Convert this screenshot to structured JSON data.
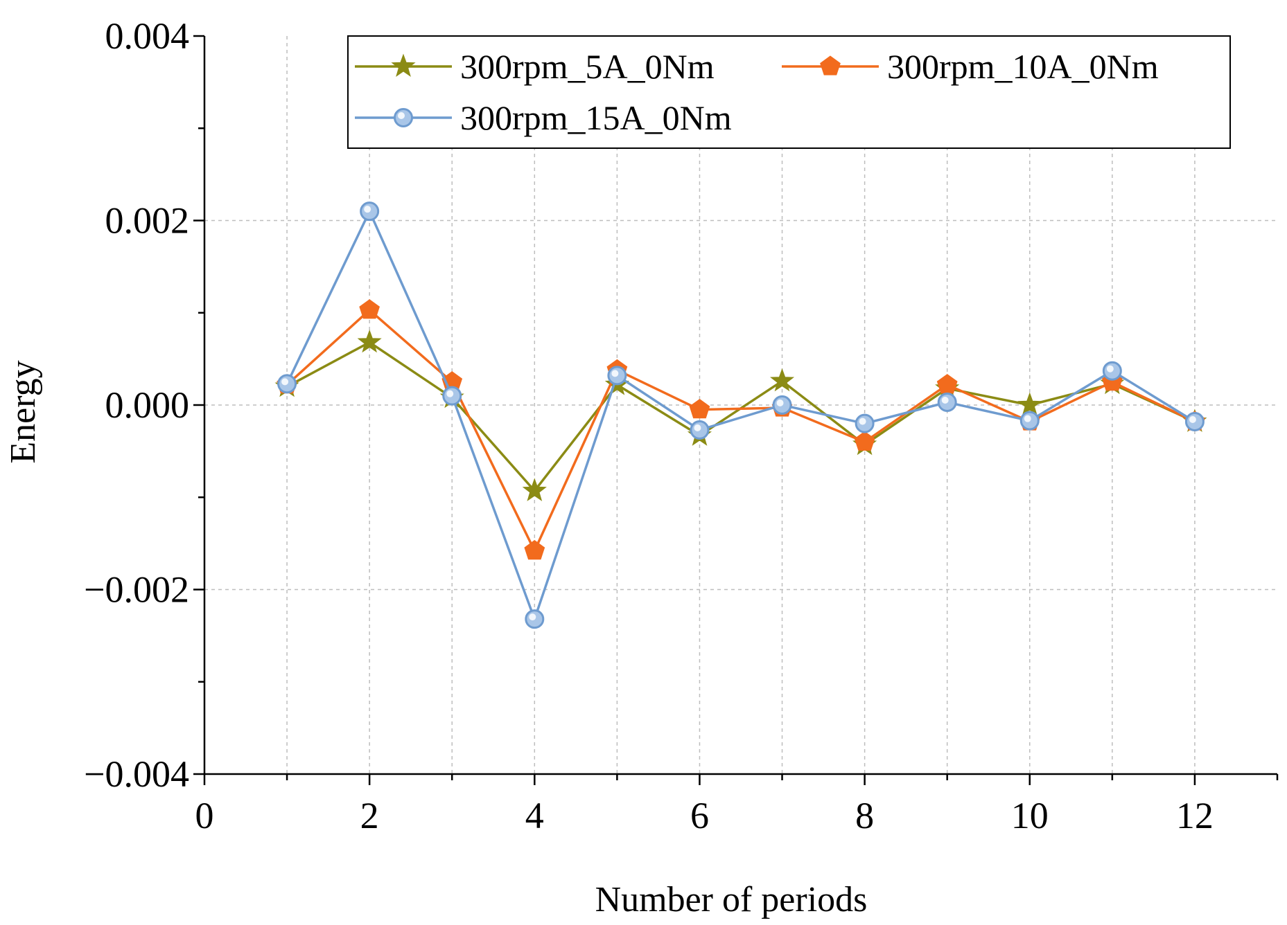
{
  "chart_data": {
    "type": "line",
    "title": "",
    "xlabel": "Number of periods",
    "ylabel": "Energy",
    "xlim": [
      0,
      13
    ],
    "ylim": [
      -0.004,
      0.004
    ],
    "x_ticks": [
      "0",
      "2",
      "4",
      "6",
      "8",
      "10",
      "12"
    ],
    "y_ticks": [
      "−0.004",
      "−0.002",
      "0.000",
      "0.002",
      "0.004"
    ],
    "grid": true,
    "legend_position": "top-right",
    "x": [
      1,
      2,
      3,
      4,
      5,
      6,
      7,
      8,
      9,
      10,
      11,
      12
    ],
    "series": [
      {
        "name": "300rpm_5A_0Nm",
        "color": "#8B8B14",
        "marker": "star",
        "values": [
          0.0002,
          0.00068,
          8e-05,
          -0.00093,
          0.00022,
          -0.00033,
          0.00026,
          -0.00043,
          0.00018,
          0.0,
          0.00023,
          -0.00018
        ]
      },
      {
        "name": "300rpm_10A_0Nm",
        "color": "#F26B1D",
        "marker": "pentagon",
        "values": [
          0.00022,
          0.00103,
          0.00025,
          -0.00158,
          0.00038,
          -5e-05,
          -3e-05,
          -0.0004,
          0.00022,
          -0.00018,
          0.00025,
          -0.00018
        ]
      },
      {
        "name": "300rpm_15A_0Nm",
        "color": "#6E9BCF",
        "marker": "circle",
        "values": [
          0.00023,
          0.0021,
          0.0001,
          -0.00232,
          0.00032,
          -0.00027,
          0.0,
          -0.0002,
          3e-05,
          -0.00017,
          0.00037,
          -0.00018
        ]
      }
    ]
  }
}
